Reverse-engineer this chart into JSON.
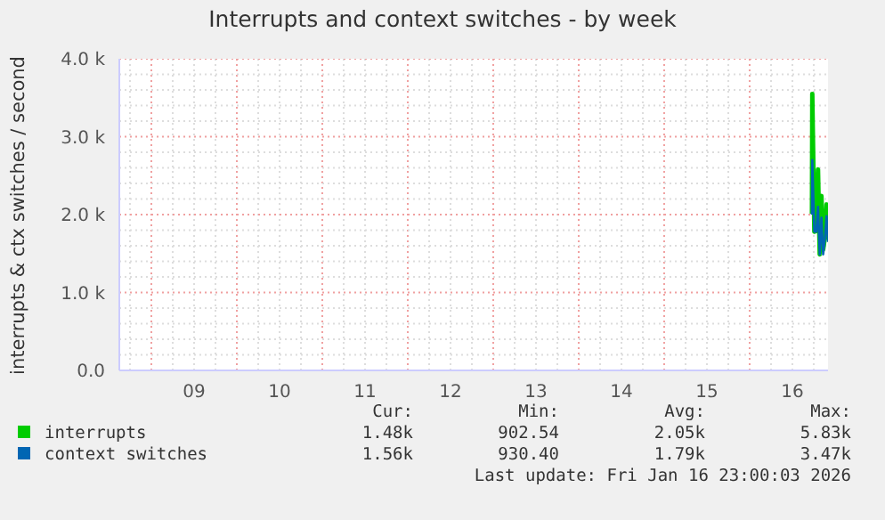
{
  "chart_data": {
    "type": "line",
    "title": "Interrupts and context switches - by week",
    "ylabel": "interrupts & ctx switches / second",
    "x": [
      16.729,
      16.733,
      16.757,
      16.78,
      16.8,
      16.82,
      16.84,
      16.86,
      16.88,
      16.9,
      16.917
    ],
    "series": [
      {
        "name": "interrupts",
        "color": "#00cc00",
        "values": [
          2010,
          3550,
          1780,
          1800,
          2580,
          1490,
          2240,
          1550,
          1700,
          2130,
          1680
        ]
      },
      {
        "name": "context switches",
        "color": "#0066b3",
        "values": [
          2000,
          2700,
          1780,
          1780,
          2100,
          1490,
          1960,
          1490,
          1690,
          1980,
          1650
        ]
      }
    ],
    "xlim": [
      8.625,
      16.917
    ],
    "xticks": [
      {
        "value": 8.75,
        "label": null
      },
      {
        "value": 9,
        "label": null
      },
      {
        "value": 9.25,
        "label": null
      },
      {
        "value": 9.5,
        "label": "09"
      },
      {
        "value": 9.75,
        "label": null
      },
      {
        "value": 10,
        "label": null
      },
      {
        "value": 10.25,
        "label": null
      },
      {
        "value": 10.5,
        "label": "10"
      },
      {
        "value": 10.75,
        "label": null
      },
      {
        "value": 11,
        "label": null
      },
      {
        "value": 11.25,
        "label": null
      },
      {
        "value": 11.5,
        "label": "11"
      },
      {
        "value": 11.75,
        "label": null
      },
      {
        "value": 12,
        "label": null
      },
      {
        "value": 12.25,
        "label": null
      },
      {
        "value": 12.5,
        "label": "12"
      },
      {
        "value": 12.75,
        "label": null
      },
      {
        "value": 13,
        "label": null
      },
      {
        "value": 13.25,
        "label": null
      },
      {
        "value": 13.5,
        "label": "13"
      },
      {
        "value": 13.75,
        "label": null
      },
      {
        "value": 14,
        "label": null
      },
      {
        "value": 14.25,
        "label": null
      },
      {
        "value": 14.5,
        "label": "14"
      },
      {
        "value": 14.75,
        "label": null
      },
      {
        "value": 15,
        "label": null
      },
      {
        "value": 15.25,
        "label": null
      },
      {
        "value": 15.5,
        "label": "15"
      },
      {
        "value": 15.75,
        "label": null
      },
      {
        "value": 16,
        "label": null
      },
      {
        "value": 16.25,
        "label": null
      },
      {
        "value": 16.5,
        "label": "16"
      },
      {
        "value": 16.75,
        "label": null
      }
    ],
    "ylim": [
      0,
      4000
    ],
    "yticks": [
      {
        "value": 0,
        "label": "0.0"
      },
      {
        "value": 200,
        "label": null
      },
      {
        "value": 400,
        "label": null
      },
      {
        "value": 600,
        "label": null
      },
      {
        "value": 800,
        "label": null
      },
      {
        "value": 1000,
        "label": "1.0 k"
      },
      {
        "value": 1200,
        "label": null
      },
      {
        "value": 1400,
        "label": null
      },
      {
        "value": 1600,
        "label": null
      },
      {
        "value": 1800,
        "label": null
      },
      {
        "value": 2000,
        "label": "2.0 k"
      },
      {
        "value": 2200,
        "label": null
      },
      {
        "value": 2400,
        "label": null
      },
      {
        "value": 2600,
        "label": null
      },
      {
        "value": 2800,
        "label": null
      },
      {
        "value": 3000,
        "label": "3.0 k"
      },
      {
        "value": 3200,
        "label": null
      },
      {
        "value": 3400,
        "label": null
      },
      {
        "value": 3600,
        "label": null
      },
      {
        "value": 3800,
        "label": null
      },
      {
        "value": 4000,
        "label": "4.0 k"
      }
    ],
    "grid": true,
    "legend": "bottom",
    "marker": "none",
    "line_style": "solid",
    "annotations": [
      "Cur:",
      "Min:",
      "Avg:",
      "Max:",
      "1.48k",
      "902.54",
      "2.05k",
      "5.83k",
      "1.56k",
      "930.40",
      "1.79k",
      "3.47k",
      "Last update: Fri Jan 16 23:00:03 2026"
    ]
  }
}
